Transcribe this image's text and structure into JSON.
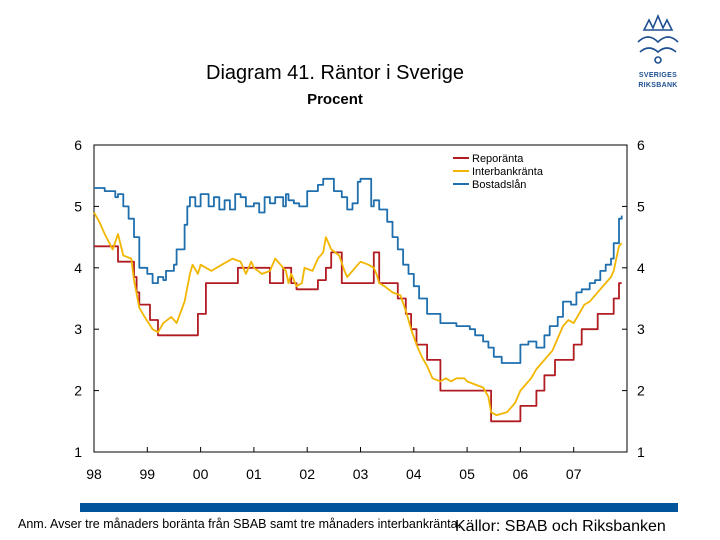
{
  "chart_data": {
    "type": "line",
    "title": "Diagram 41. Räntor i Sverige",
    "subtitle": "Procent",
    "xlabel": "",
    "ylabel": "",
    "xlim": [
      1998.0,
      2008.0
    ],
    "ylim": [
      1,
      6
    ],
    "x_ticks": [
      "98",
      "99",
      "00",
      "01",
      "02",
      "03",
      "04",
      "05",
      "06",
      "07"
    ],
    "y_ticks": [
      1,
      2,
      3,
      4,
      5,
      6
    ],
    "grid": false,
    "legend_position": "top-right",
    "series": [
      {
        "name": "Reporänta",
        "color": "#b01c22",
        "step": true,
        "points": [
          [
            1998.0,
            4.35
          ],
          [
            1998.45,
            4.1
          ],
          [
            1998.75,
            3.85
          ],
          [
            1998.8,
            3.6
          ],
          [
            1998.85,
            3.4
          ],
          [
            1998.95,
            3.4
          ],
          [
            1999.05,
            3.15
          ],
          [
            1999.2,
            2.9
          ],
          [
            1999.85,
            2.9
          ],
          [
            1999.95,
            3.25
          ],
          [
            2000.1,
            3.75
          ],
          [
            2000.7,
            4.0
          ],
          [
            2001.3,
            3.75
          ],
          [
            2001.55,
            4.0
          ],
          [
            2001.7,
            3.75
          ],
          [
            2001.8,
            3.65
          ],
          [
            2002.2,
            3.8
          ],
          [
            2002.35,
            4.0
          ],
          [
            2002.45,
            4.25
          ],
          [
            2002.65,
            3.75
          ],
          [
            2003.25,
            4.25
          ],
          [
            2003.35,
            3.75
          ],
          [
            2003.7,
            3.5
          ],
          [
            2003.85,
            3.25
          ],
          [
            2003.95,
            3.0
          ],
          [
            2004.05,
            2.75
          ],
          [
            2004.25,
            2.5
          ],
          [
            2004.5,
            2.0
          ],
          [
            2005.35,
            2.0
          ],
          [
            2005.45,
            1.5
          ],
          [
            2005.7,
            1.5
          ],
          [
            2006.0,
            1.75
          ],
          [
            2006.3,
            2.0
          ],
          [
            2006.45,
            2.25
          ],
          [
            2006.65,
            2.5
          ],
          [
            2007.0,
            2.75
          ],
          [
            2007.15,
            3.0
          ],
          [
            2007.45,
            3.25
          ],
          [
            2007.75,
            3.5
          ],
          [
            2007.85,
            3.75
          ],
          [
            2007.9,
            3.75
          ]
        ]
      },
      {
        "name": "Interbankränta",
        "color": "#f2b600",
        "step": false,
        "points": [
          [
            1998.0,
            4.9
          ],
          [
            1998.1,
            4.75
          ],
          [
            1998.2,
            4.55
          ],
          [
            1998.35,
            4.3
          ],
          [
            1998.45,
            4.55
          ],
          [
            1998.55,
            4.2
          ],
          [
            1998.7,
            4.15
          ],
          [
            1998.75,
            3.8
          ],
          [
            1998.85,
            3.35
          ],
          [
            1998.95,
            3.2
          ],
          [
            1999.1,
            3.0
          ],
          [
            1999.2,
            2.95
          ],
          [
            1999.3,
            3.1
          ],
          [
            1999.45,
            3.2
          ],
          [
            1999.55,
            3.1
          ],
          [
            1999.7,
            3.45
          ],
          [
            1999.8,
            3.9
          ],
          [
            1999.85,
            4.05
          ],
          [
            1999.95,
            3.9
          ],
          [
            2000.0,
            4.05
          ],
          [
            2000.2,
            3.95
          ],
          [
            2000.4,
            4.05
          ],
          [
            2000.6,
            4.15
          ],
          [
            2000.75,
            4.1
          ],
          [
            2000.85,
            3.9
          ],
          [
            2000.95,
            4.1
          ],
          [
            2001.0,
            4.0
          ],
          [
            2001.15,
            3.9
          ],
          [
            2001.3,
            3.95
          ],
          [
            2001.4,
            4.15
          ],
          [
            2001.5,
            4.05
          ],
          [
            2001.6,
            3.95
          ],
          [
            2001.65,
            3.75
          ],
          [
            2001.7,
            3.9
          ],
          [
            2001.8,
            3.7
          ],
          [
            2001.9,
            3.75
          ],
          [
            2001.95,
            4.0
          ],
          [
            2002.1,
            3.95
          ],
          [
            2002.2,
            4.15
          ],
          [
            2002.3,
            4.25
          ],
          [
            2002.35,
            4.5
          ],
          [
            2002.45,
            4.3
          ],
          [
            2002.6,
            4.2
          ],
          [
            2002.7,
            3.95
          ],
          [
            2002.75,
            3.85
          ],
          [
            2002.85,
            3.95
          ],
          [
            2002.95,
            4.05
          ],
          [
            2003.0,
            4.1
          ],
          [
            2003.15,
            4.05
          ],
          [
            2003.25,
            4.0
          ],
          [
            2003.3,
            3.9
          ],
          [
            2003.35,
            3.75
          ],
          [
            2003.45,
            3.7
          ],
          [
            2003.6,
            3.6
          ],
          [
            2003.75,
            3.55
          ],
          [
            2003.85,
            3.3
          ],
          [
            2003.95,
            3.0
          ],
          [
            2004.05,
            2.75
          ],
          [
            2004.15,
            2.55
          ],
          [
            2004.25,
            2.4
          ],
          [
            2004.35,
            2.2
          ],
          [
            2004.5,
            2.15
          ],
          [
            2004.6,
            2.2
          ],
          [
            2004.7,
            2.15
          ],
          [
            2004.8,
            2.2
          ],
          [
            2004.95,
            2.2
          ],
          [
            2005.0,
            2.15
          ],
          [
            2005.15,
            2.1
          ],
          [
            2005.3,
            2.05
          ],
          [
            2005.4,
            1.9
          ],
          [
            2005.45,
            1.65
          ],
          [
            2005.55,
            1.6
          ],
          [
            2005.75,
            1.65
          ],
          [
            2005.9,
            1.8
          ],
          [
            2006.0,
            2.0
          ],
          [
            2006.1,
            2.1
          ],
          [
            2006.2,
            2.2
          ],
          [
            2006.3,
            2.35
          ],
          [
            2006.4,
            2.45
          ],
          [
            2006.5,
            2.55
          ],
          [
            2006.6,
            2.65
          ],
          [
            2006.7,
            2.85
          ],
          [
            2006.8,
            3.05
          ],
          [
            2006.9,
            3.15
          ],
          [
            2007.0,
            3.1
          ],
          [
            2007.1,
            3.25
          ],
          [
            2007.2,
            3.4
          ],
          [
            2007.3,
            3.45
          ],
          [
            2007.4,
            3.55
          ],
          [
            2007.5,
            3.65
          ],
          [
            2007.6,
            3.75
          ],
          [
            2007.7,
            3.85
          ],
          [
            2007.75,
            3.95
          ],
          [
            2007.8,
            4.15
          ],
          [
            2007.85,
            4.35
          ],
          [
            2007.9,
            4.4
          ]
        ]
      },
      {
        "name": "Bostadslån",
        "color": "#1f6fae",
        "step": true,
        "points": [
          [
            1998.0,
            5.3
          ],
          [
            1998.2,
            5.25
          ],
          [
            1998.4,
            5.15
          ],
          [
            1998.45,
            5.2
          ],
          [
            1998.55,
            5.0
          ],
          [
            1998.65,
            4.8
          ],
          [
            1998.75,
            4.5
          ],
          [
            1998.85,
            4.0
          ],
          [
            1999.0,
            3.9
          ],
          [
            1999.1,
            3.75
          ],
          [
            1999.2,
            3.85
          ],
          [
            1999.3,
            3.8
          ],
          [
            1999.35,
            3.95
          ],
          [
            1999.5,
            4.05
          ],
          [
            1999.55,
            4.3
          ],
          [
            1999.7,
            4.7
          ],
          [
            1999.75,
            5.0
          ],
          [
            1999.8,
            5.15
          ],
          [
            1999.9,
            5.0
          ],
          [
            2000.0,
            5.2
          ],
          [
            2000.15,
            5.0
          ],
          [
            2000.25,
            5.15
          ],
          [
            2000.35,
            4.95
          ],
          [
            2000.45,
            5.1
          ],
          [
            2000.55,
            4.95
          ],
          [
            2000.65,
            5.2
          ],
          [
            2000.75,
            5.15
          ],
          [
            2000.85,
            5.0
          ],
          [
            2001.0,
            5.05
          ],
          [
            2001.1,
            4.9
          ],
          [
            2001.2,
            5.15
          ],
          [
            2001.3,
            5.05
          ],
          [
            2001.4,
            5.15
          ],
          [
            2001.55,
            5.0
          ],
          [
            2001.6,
            5.2
          ],
          [
            2001.65,
            5.1
          ],
          [
            2001.75,
            5.05
          ],
          [
            2001.85,
            5.0
          ],
          [
            2002.0,
            5.25
          ],
          [
            2002.2,
            5.35
          ],
          [
            2002.3,
            5.45
          ],
          [
            2002.5,
            5.25
          ],
          [
            2002.65,
            5.15
          ],
          [
            2002.75,
            4.95
          ],
          [
            2002.85,
            5.05
          ],
          [
            2002.95,
            5.4
          ],
          [
            2003.0,
            5.45
          ],
          [
            2003.2,
            5.0
          ],
          [
            2003.25,
            5.1
          ],
          [
            2003.35,
            4.95
          ],
          [
            2003.5,
            4.75
          ],
          [
            2003.6,
            4.5
          ],
          [
            2003.7,
            4.3
          ],
          [
            2003.8,
            4.05
          ],
          [
            2003.9,
            3.9
          ],
          [
            2004.0,
            3.7
          ],
          [
            2004.1,
            3.5
          ],
          [
            2004.25,
            3.25
          ],
          [
            2004.5,
            3.1
          ],
          [
            2004.8,
            3.05
          ],
          [
            2005.05,
            3.0
          ],
          [
            2005.15,
            2.9
          ],
          [
            2005.3,
            2.8
          ],
          [
            2005.4,
            2.7
          ],
          [
            2005.5,
            2.55
          ],
          [
            2005.65,
            2.45
          ],
          [
            2005.85,
            2.45
          ],
          [
            2006.0,
            2.75
          ],
          [
            2006.15,
            2.8
          ],
          [
            2006.3,
            2.7
          ],
          [
            2006.45,
            2.9
          ],
          [
            2006.55,
            3.05
          ],
          [
            2006.7,
            3.2
          ],
          [
            2006.8,
            3.45
          ],
          [
            2006.95,
            3.4
          ],
          [
            2007.05,
            3.6
          ],
          [
            2007.15,
            3.65
          ],
          [
            2007.3,
            3.75
          ],
          [
            2007.4,
            3.8
          ],
          [
            2007.5,
            3.95
          ],
          [
            2007.6,
            4.05
          ],
          [
            2007.7,
            4.15
          ],
          [
            2007.75,
            4.4
          ],
          [
            2007.85,
            4.8
          ],
          [
            2007.9,
            4.85
          ]
        ]
      }
    ]
  },
  "footer": {
    "note": "Anm. Avser tre månaders boränta från SBAB samt tre månaders interbankränta.",
    "source": "Källor: SBAB och Riksbanken"
  },
  "logo": {
    "line1": "SVERIGES",
    "line2": "RIKSBANK",
    "color": "#1d4f91"
  },
  "colors": {
    "footer_bar": "#00549a"
  }
}
